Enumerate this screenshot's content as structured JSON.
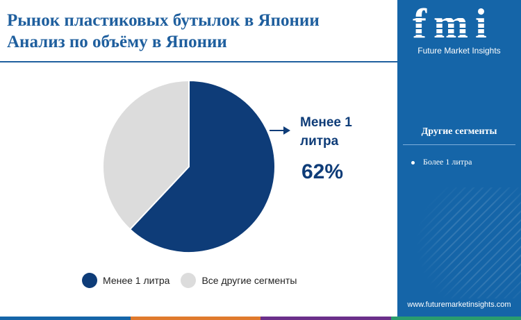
{
  "header": {
    "title_line1": "Рынок пластиковых бутылок в Японии",
    "title_line2": "Анализ по объёму в Японии"
  },
  "chart_data": {
    "type": "pie",
    "slices": [
      {
        "label": "Менее 1 литра",
        "value": 62,
        "color": "#0e3c78"
      },
      {
        "label": "Все другие сегменты",
        "value": 38,
        "color": "#dcdcdc"
      }
    ],
    "callout": {
      "label": "Менее 1 литра",
      "value_text": "62%"
    },
    "legend": {
      "position": "bottom"
    }
  },
  "callout": {
    "label": "Менее 1 литра",
    "value": "62%"
  },
  "legend": {
    "items": [
      {
        "label": "Менее 1 литра",
        "color": "#0e3c78"
      },
      {
        "label": "Все другие сегменты",
        "color": "#dcdcdc"
      }
    ]
  },
  "side_panel": {
    "logo_text": "fmi",
    "logo_caption": "Future Market Insights",
    "heading": "Другие сегменты",
    "items": [
      "Более 1 литра"
    ],
    "website": "www.futuremarketinsights.com",
    "background_color": "#1565a8"
  },
  "bottom_bar_colors": [
    "#1565a8",
    "#e07a2d",
    "#6b2f8a",
    "#2a9c6e"
  ]
}
